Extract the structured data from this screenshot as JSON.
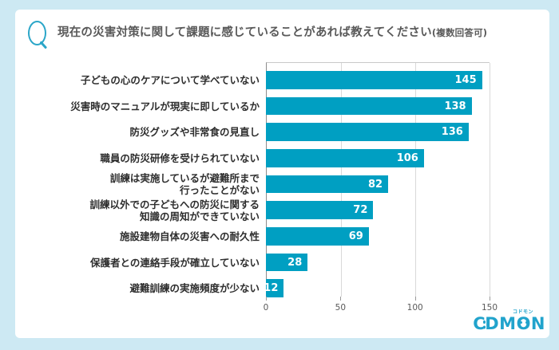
{
  "header": {
    "q_mark": "Q",
    "title": "現在の災害対策に関して課題に感じていることがあれば教えてください",
    "title_suffix": "(複数回答可)"
  },
  "chart_data": {
    "type": "bar",
    "orientation": "horizontal",
    "title": "現在の災害対策に関して課題に感じていることがあれば教えてください(複数回答可)",
    "categories": [
      "子どもの心のケアについて学べていない",
      "災害時のマニュアルが現実に即しているか",
      "防災グッズや非常食の見直し",
      "職員の防災研修を受けられていない",
      "訓練は実施しているが避難所まで\n行ったことがない",
      "訓練以外での子どもへの防災に関する\n知識の周知ができていない",
      "施設建物自体の災害への耐久性",
      "保護者との連絡手段が確立していない",
      "避難訓練の実施頻度が少ない"
    ],
    "values": [
      145,
      138,
      136,
      106,
      82,
      72,
      69,
      28,
      12
    ],
    "xlabel": "",
    "ylabel": "",
    "xlim": [
      0,
      150
    ],
    "xticks": [
      0,
      50,
      100,
      150
    ],
    "grid": true,
    "legend": false,
    "bar_color": "#009fc2",
    "value_label_color": "#ffffff"
  },
  "logo": {
    "brand": "CODMON",
    "letter_c": "C",
    "letters_dm": "DM",
    "letter_o": "O",
    "letter_n": "N",
    "ruby": "コドモン"
  },
  "colors": {
    "background": "#cde9f3",
    "card": "#ffffff",
    "accent_teal": "#21a3cc",
    "q_icon_teal": "#2ba6c8",
    "axis_gray": "#8c8c8c",
    "grid_gray": "#d9d9d9",
    "title_gray": "#595959",
    "label_dark": "#2e2e2e"
  }
}
